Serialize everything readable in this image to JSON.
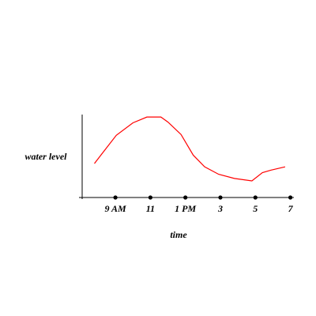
{
  "chart_data": {
    "type": "line",
    "xlabel": "time",
    "ylabel": "water level",
    "x": [
      7.8,
      9.05,
      10.0,
      10.8,
      11.6,
      12.0,
      12.75,
      13.45,
      14.1,
      14.9,
      15.8,
      16.8,
      17.4,
      17.9,
      18.7
    ],
    "series": [
      {
        "color": "#ff0000",
        "values": [
          41,
          75,
          90,
          97,
          97,
          91,
          76,
          51,
          37,
          28,
          23,
          20,
          30,
          33,
          37
        ]
      }
    ],
    "xlim": [
      7.1,
      19.2
    ],
    "ylim": [
      0,
      100
    ],
    "xticks": [
      {
        "value": 9,
        "label": "9 AM"
      },
      11,
      {
        "value": 13,
        "label": "1 PM"
      },
      {
        "value": 15,
        "label": "3"
      },
      {
        "value": 17,
        "label": "5"
      },
      {
        "value": 19,
        "label": "7"
      }
    ]
  }
}
